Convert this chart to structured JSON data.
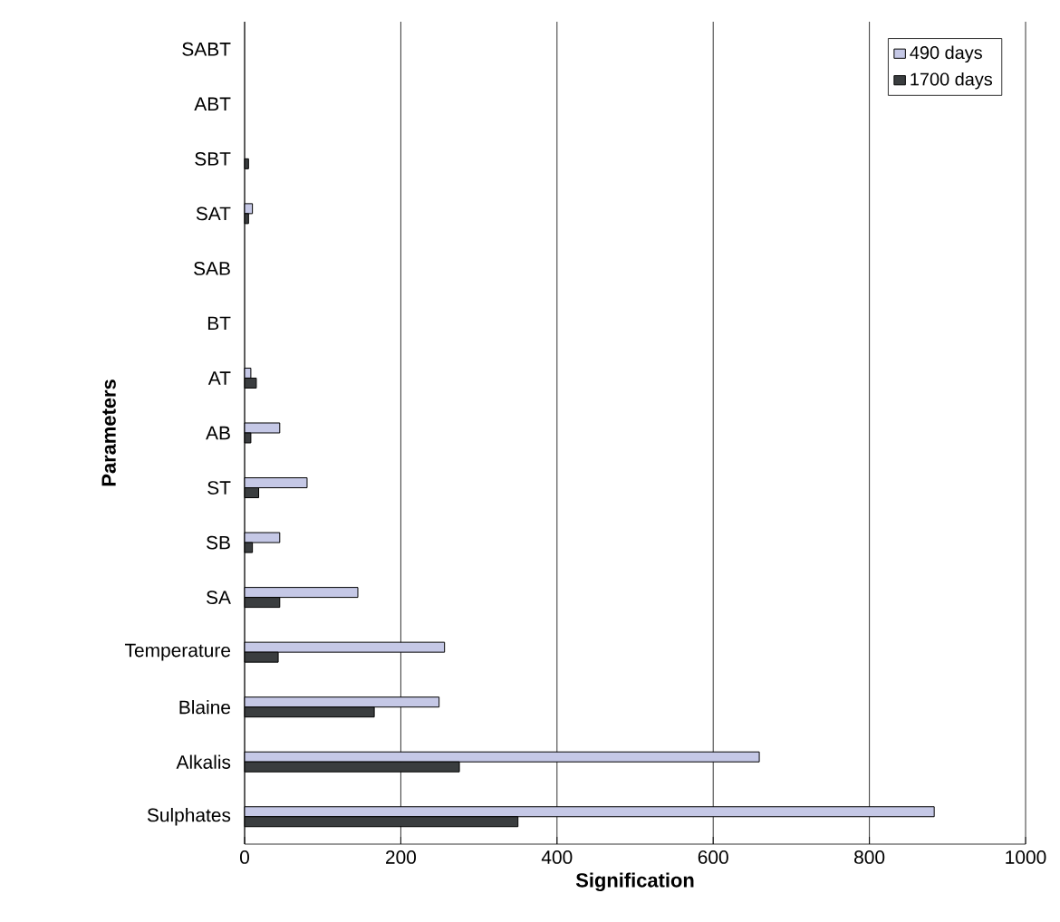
{
  "chart_data": {
    "type": "bar",
    "orientation": "horizontal",
    "xlabel": "Signification",
    "ylabel": "Parameters",
    "categories": [
      "SABT",
      "ABT",
      "SBT",
      "SAT",
      "SAB",
      "BT",
      "AT",
      "AB",
      "ST",
      "SB",
      "SA",
      "Temperature",
      "Blaine",
      "Alkalis",
      "Sulphates"
    ],
    "series": [
      {
        "name": "490 days",
        "color": "#c5c8e6",
        "values": [
          0,
          0,
          0,
          10,
          0,
          0,
          8,
          45,
          80,
          45,
          145,
          256,
          249,
          659,
          883
        ]
      },
      {
        "name": "1700 days",
        "color": "#3a3d3f",
        "values": [
          0,
          0,
          5,
          5,
          0,
          0,
          15,
          8,
          18,
          10,
          45,
          43,
          166,
          275,
          350
        ]
      }
    ],
    "xlim": [
      0,
      1000
    ],
    "xticks": [
      0,
      200,
      400,
      600,
      800,
      1000
    ],
    "grid": "x",
    "legend": "top right"
  }
}
